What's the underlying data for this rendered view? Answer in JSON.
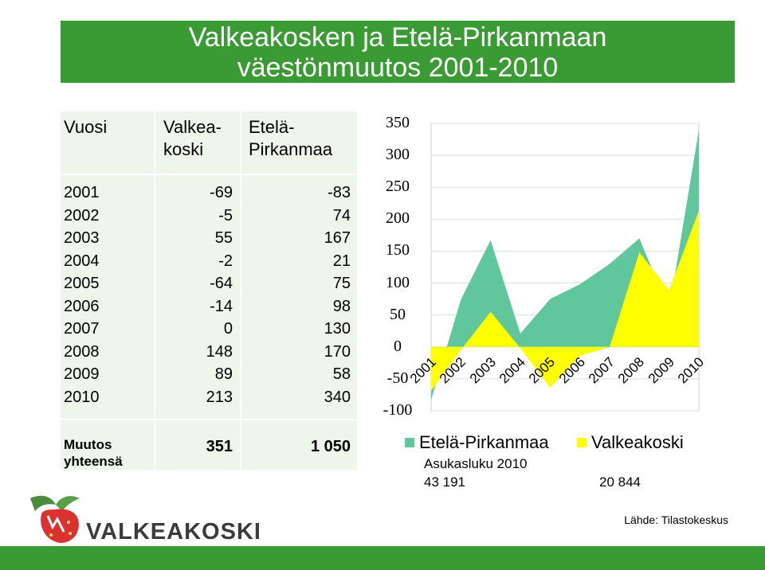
{
  "title": {
    "line1": "Valkeakosken ja Etelä-Pirkanmaan",
    "line2": "väestönmuutos 2001-2010"
  },
  "table": {
    "headers": {
      "year": "Vuosi",
      "valk_line1": "Valkea-",
      "valk_line2": "koski",
      "ep_line1": "Etelä-",
      "ep_line2": "Pirkanmaa"
    },
    "rows": [
      {
        "year": "2001",
        "valk": "-69",
        "ep": "-83"
      },
      {
        "year": "2002",
        "valk": "-5",
        "ep": "74"
      },
      {
        "year": "2003",
        "valk": "55",
        "ep": "167"
      },
      {
        "year": "2004",
        "valk": "-2",
        "ep": "21"
      },
      {
        "year": "2005",
        "valk": "-64",
        "ep": "75"
      },
      {
        "year": "2006",
        "valk": "-14",
        "ep": "98"
      },
      {
        "year": "2007",
        "valk": "0",
        "ep": "130"
      },
      {
        "year": "2008",
        "valk": "148",
        "ep": "170"
      },
      {
        "year": "2009",
        "valk": "89",
        "ep": "58"
      },
      {
        "year": "2010",
        "valk": "213",
        "ep": "340"
      }
    ],
    "total": {
      "label_line1": "Muutos",
      "label_line2": "yhteensä",
      "valk": "351",
      "ep": "1 050"
    }
  },
  "chart_data": {
    "type": "area",
    "categories": [
      "2001",
      "2002",
      "2003",
      "2004",
      "2005",
      "2006",
      "2007",
      "2008",
      "2009",
      "2010"
    ],
    "series": [
      {
        "name": "Etelä-Pirkanmaa",
        "color": "#5fc79b",
        "values": [
          -83,
          74,
          167,
          21,
          75,
          98,
          130,
          170,
          58,
          340
        ]
      },
      {
        "name": "Valkeakoski",
        "color": "#ffff00",
        "values": [
          -69,
          -5,
          55,
          -2,
          -64,
          -14,
          0,
          148,
          89,
          213
        ]
      }
    ],
    "yticks": [
      "350",
      "300",
      "250",
      "200",
      "150",
      "100",
      "50",
      "0",
      "-50",
      "-100"
    ],
    "ylim": [
      -100,
      350
    ],
    "grid": true
  },
  "legend": {
    "ep": "Etelä-Pirkanmaa",
    "valk": "Valkeakoski"
  },
  "population": {
    "label": "Asukasluku 2010",
    "ep": "43 191",
    "valk": "20 844"
  },
  "source": "Lähde: Tilastokeskus",
  "logo": {
    "text": "VALKEAKOSKI"
  },
  "colors": {
    "brand_green": "#3a9a33",
    "table_bg": "#eef5ea"
  }
}
